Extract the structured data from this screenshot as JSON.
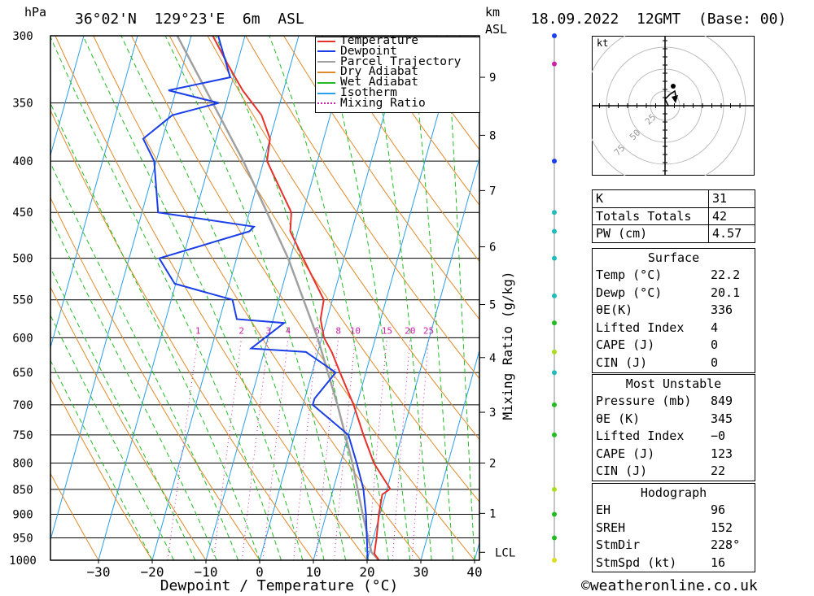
{
  "header": {
    "pressure_unit": "hPa",
    "location": "36°02'N  129°23'E  6m  ASL",
    "height_unit": "km",
    "height_unit2": "ASL",
    "datetime": "18.09.2022  12GMT  (Base: 00)"
  },
  "chart_data": {
    "type": "skew-t",
    "xlabel": "Dewpoint / Temperature (°C)",
    "y2label": "Mixing Ratio (g/kg)",
    "pressure_levels": [
      300,
      350,
      400,
      450,
      500,
      550,
      600,
      650,
      700,
      750,
      800,
      850,
      900,
      950,
      1000
    ],
    "pressure_tick_labels": [
      "300",
      "350",
      "400",
      "450",
      "500",
      "550",
      "600",
      "650",
      "700",
      "750",
      "800",
      "850",
      "900",
      "950",
      "1000"
    ],
    "temperature_ticks": [
      -30,
      -20,
      -10,
      0,
      10,
      20,
      30,
      40
    ],
    "temperature_tick_labels": [
      "−30",
      "−20",
      "−10",
      "0",
      "10",
      "20",
      "30",
      "40"
    ],
    "xlim": [
      -40,
      40
    ],
    "ylim": [
      1000,
      300
    ],
    "height_km_ticks": [
      {
        "label": "9",
        "p": 330
      },
      {
        "label": "8",
        "p": 377
      },
      {
        "label": "7",
        "p": 428
      },
      {
        "label": "6",
        "p": 487
      },
      {
        "label": "5",
        "p": 556
      },
      {
        "label": "4",
        "p": 628
      },
      {
        "label": "3",
        "p": 712
      },
      {
        "label": "2",
        "p": 800
      },
      {
        "label": "1",
        "p": 898
      },
      {
        "label": "LCL",
        "p": 982
      }
    ],
    "mixing_ratio_labels": [
      "1",
      "2",
      "3",
      "4",
      "6",
      "8",
      "10",
      "15",
      "20",
      "25"
    ],
    "mixing_ratio_values": [
      1,
      2,
      3,
      4,
      6,
      8,
      10,
      15,
      20,
      25
    ],
    "legend": [
      "Temperature",
      "Dewpoint",
      "Parcel Trajectory",
      "Dry Adiabat",
      "Wet Adiabat",
      "Isotherm",
      "Mixing Ratio"
    ],
    "colors": {
      "temperature": "#e8312a",
      "dewpoint": "#1a3ee8",
      "parcel": "#a0a0a0",
      "dry_adiabat": "#e08a2a",
      "wet_adiabat": "#22bb22",
      "isotherm": "#2a9ee8",
      "mixing_ratio": "#cc22aa"
    },
    "temperature_profile": [
      {
        "p": 1000,
        "t": 22.2
      },
      {
        "p": 985,
        "t": 21.0
      },
      {
        "p": 950,
        "t": 20.6
      },
      {
        "p": 900,
        "t": 19.8
      },
      {
        "p": 860,
        "t": 19.4
      },
      {
        "p": 849,
        "t": 20.6
      },
      {
        "p": 800,
        "t": 16.2
      },
      {
        "p": 750,
        "t": 12.8
      },
      {
        "p": 700,
        "t": 9.4
      },
      {
        "p": 650,
        "t": 5.2
      },
      {
        "p": 620,
        "t": 2.6
      },
      {
        "p": 600,
        "t": 0.4
      },
      {
        "p": 575,
        "t": -1.2
      },
      {
        "p": 550,
        "t": -1.6
      },
      {
        "p": 500,
        "t": -7.6
      },
      {
        "p": 470,
        "t": -11.4
      },
      {
        "p": 450,
        "t": -12.2
      },
      {
        "p": 400,
        "t": -19.4
      },
      {
        "p": 380,
        "t": -20.0
      },
      {
        "p": 360,
        "t": -22.8
      },
      {
        "p": 340,
        "t": -27.6
      },
      {
        "p": 320,
        "t": -31.8
      },
      {
        "p": 300,
        "t": -36.0
      }
    ],
    "dewpoint_profile": [
      {
        "p": 1000,
        "t": 20.1
      },
      {
        "p": 950,
        "t": 18.8
      },
      {
        "p": 900,
        "t": 17.4
      },
      {
        "p": 860,
        "t": 16.0
      },
      {
        "p": 849,
        "t": 15.6
      },
      {
        "p": 800,
        "t": 13.0
      },
      {
        "p": 750,
        "t": 10.0
      },
      {
        "p": 700,
        "t": 1.8
      },
      {
        "p": 690,
        "t": 1.8
      },
      {
        "p": 650,
        "t": 4.4
      },
      {
        "p": 620,
        "t": -2.2
      },
      {
        "p": 615,
        "t": -12.6
      },
      {
        "p": 580,
        "t": -7.8
      },
      {
        "p": 575,
        "t": -16.8
      },
      {
        "p": 550,
        "t": -18.6
      },
      {
        "p": 530,
        "t": -30.2
      },
      {
        "p": 500,
        "t": -34.4
      },
      {
        "p": 470,
        "t": -19.0
      },
      {
        "p": 465,
        "t": -18.4
      },
      {
        "p": 450,
        "t": -37.0
      },
      {
        "p": 400,
        "t": -40.4
      },
      {
        "p": 380,
        "t": -43.6
      },
      {
        "p": 360,
        "t": -39.4
      },
      {
        "p": 350,
        "t": -31.4
      },
      {
        "p": 340,
        "t": -41.4
      },
      {
        "p": 330,
        "t": -30.6
      },
      {
        "p": 300,
        "t": -35.0
      }
    ],
    "parcel_profile": [
      {
        "p": 1000,
        "t": 22.2
      },
      {
        "p": 982,
        "t": 20.4
      },
      {
        "p": 900,
        "t": 16.8
      },
      {
        "p": 800,
        "t": 12.2
      },
      {
        "p": 700,
        "t": 6.4
      },
      {
        "p": 600,
        "t": -0.8
      },
      {
        "p": 500,
        "t": -10.4
      },
      {
        "p": 400,
        "t": -23.8
      },
      {
        "p": 300,
        "t": -42.6
      }
    ]
  },
  "indices": [
    {
      "label": "K",
      "value": "31"
    },
    {
      "label": "Totals Totals",
      "value": "42"
    },
    {
      "label": "PW (cm)",
      "value": "4.57"
    }
  ],
  "surface": {
    "title": "Surface",
    "rows": [
      {
        "label": "Temp (°C)",
        "value": "22.2"
      },
      {
        "label": "Dewp (°C)",
        "value": "20.1"
      },
      {
        "label": "θE(K)",
        "value": "336"
      },
      {
        "label": "Lifted Index",
        "value": "4"
      },
      {
        "label": "CAPE (J)",
        "value": "0"
      },
      {
        "label": "CIN (J)",
        "value": "0"
      }
    ]
  },
  "most_unstable": {
    "title": "Most Unstable",
    "rows": [
      {
        "label": "Pressure (mb)",
        "value": "849"
      },
      {
        "label": "θE (K)",
        "value": "345"
      },
      {
        "label": "Lifted Index",
        "value": "−0"
      },
      {
        "label": "CAPE (J)",
        "value": "123"
      },
      {
        "label": "CIN (J)",
        "value": "22"
      }
    ]
  },
  "hodograph": {
    "title": "Hodograph",
    "unit": "kt",
    "ring_labels": [
      "25",
      "50",
      "75"
    ],
    "rows": [
      {
        "label": "EH",
        "value": "96"
      },
      {
        "label": "SREH",
        "value": "152"
      },
      {
        "label": "StmDir",
        "value": "228°"
      },
      {
        "label": "StmSpd (kt)",
        "value": "16"
      }
    ]
  },
  "footer": {
    "copyright": "©weatheronline.co.uk"
  }
}
